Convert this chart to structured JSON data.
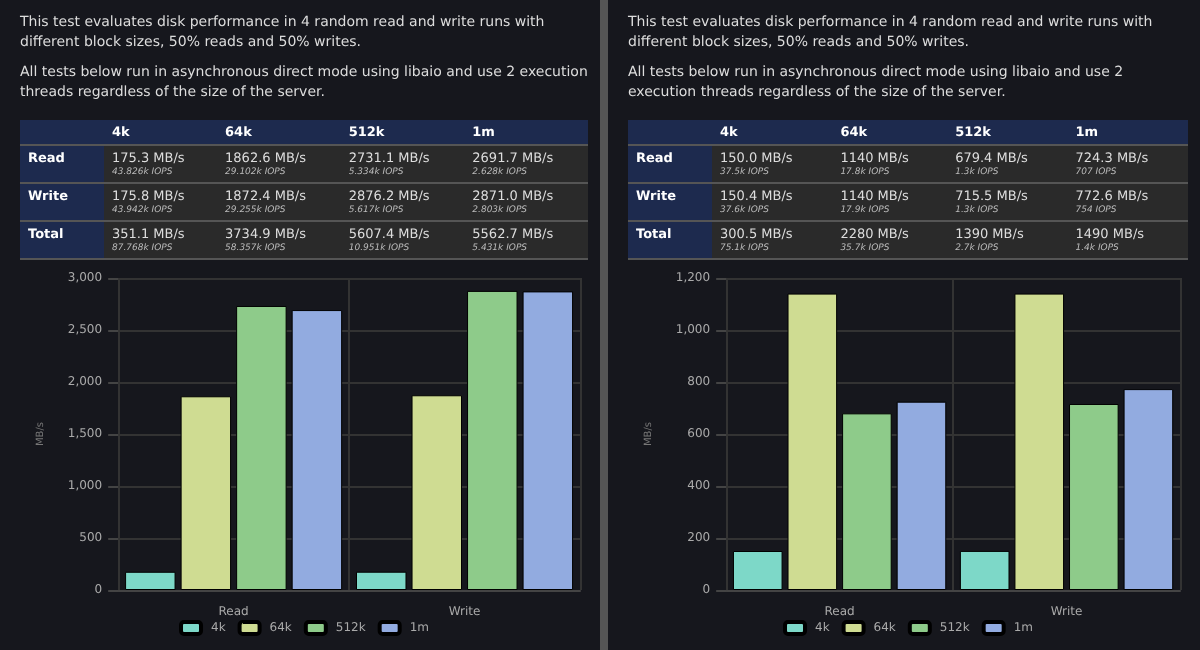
{
  "chart_data": [
    {
      "type": "bar",
      "subtitle": "This test evaluates disk performance in 4 random read and write runs with different block sizes, 50% reads and 50% writes.\nAll tests below run in asynchronous direct mode using libaio and use 2 execution threads regardless of the size of the server.",
      "ylabel": "MB/s",
      "categories": [
        "Read",
        "Write"
      ],
      "series": [
        {
          "name": "4k",
          "color": "#7dd8c8",
          "values": [
            175.3,
            175.8
          ]
        },
        {
          "name": "64k",
          "color": "#cfdc92",
          "values": [
            1862.6,
            1872.4
          ]
        },
        {
          "name": "512k",
          "color": "#8ecb8a",
          "values": [
            2731.1,
            2876.2
          ]
        },
        {
          "name": "1m",
          "color": "#92abe0",
          "values": [
            2691.7,
            2871.0
          ]
        }
      ],
      "annotations": [
        "175.3 MB/s",
        "1862.6 MB/s",
        "2731.1 MB/s",
        "2691.7 MB/s",
        "43.826k IOPS",
        "29.102k IOPS",
        "5.334k IOPS",
        "2.628k IOPS",
        "175.8 MB/s",
        "1872.4 MB/s",
        "2876.2 MB/s",
        "2871.0 MB/s",
        "43.942k IOPS",
        "29.255k IOPS",
        "5.617k IOPS",
        "2.803k IOPS",
        "Total",
        "351.1 MB/s",
        "3734.9 MB/s",
        "5607.4 MB/s",
        "5562.7 MB/s",
        "87.768k IOPS",
        "58.357k IOPS",
        "10.951k IOPS",
        "5.431k IOPS"
      ],
      "ylim": [
        0,
        3000
      ],
      "yticks": [
        0,
        500,
        {
          "value": 1000,
          "label": "1,000"
        },
        {
          "value": 1500,
          "label": "1,500"
        },
        {
          "value": 2000,
          "label": "2,000"
        },
        {
          "value": 2500,
          "label": "2,500"
        },
        {
          "value": 3000,
          "label": "3,000"
        }
      ],
      "grid": true,
      "legend": "bottom"
    },
    {
      "type": "bar",
      "subtitle": "This test evaluates disk performance in 4 random read and write runs with different block sizes, 50% reads and 50% writes.\nAll tests below run in asynchronous direct mode using libaio and use 2 execution threads regardless of the size of the server.",
      "ylabel": "MB/s",
      "categories": [
        "Read",
        "Write"
      ],
      "series": [
        {
          "name": "4k",
          "color": "#7dd8c8",
          "values": [
            150.0,
            150.4
          ]
        },
        {
          "name": "64k",
          "color": "#cfdc92",
          "values": [
            1140,
            1140
          ]
        },
        {
          "name": "512k",
          "color": "#8ecb8a",
          "values": [
            679.4,
            715.5
          ]
        },
        {
          "name": "1m",
          "color": "#92abe0",
          "values": [
            724.3,
            772.6
          ]
        }
      ],
      "annotations": [
        "150.0 MB/s",
        "1140 MB/s",
        "679.4 MB/s",
        "724.3 MB/s",
        "37.5k IOPS",
        "17.8k IOPS",
        "1.3k IOPS",
        "707 IOPS",
        "150.4 MB/s",
        "1140 MB/s",
        "715.5 MB/s",
        "772.6 MB/s",
        "37.6k IOPS",
        "17.9k IOPS",
        "1.3k IOPS",
        "754 IOPS",
        "Total",
        "300.5 MB/s",
        "2280 MB/s",
        "1390 MB/s",
        "1490 MB/s",
        "75.1k IOPS",
        "35.7k IOPS",
        "2.7k IOPS",
        "1.4k IOPS"
      ],
      "ylim": [
        0,
        1200
      ],
      "yticks": [
        0,
        200,
        400,
        600,
        800,
        {
          "value": 1000,
          "label": "1,000"
        },
        {
          "value": 1200,
          "label": "1,200"
        }
      ],
      "grid": true,
      "legend": "bottom"
    }
  ]
}
